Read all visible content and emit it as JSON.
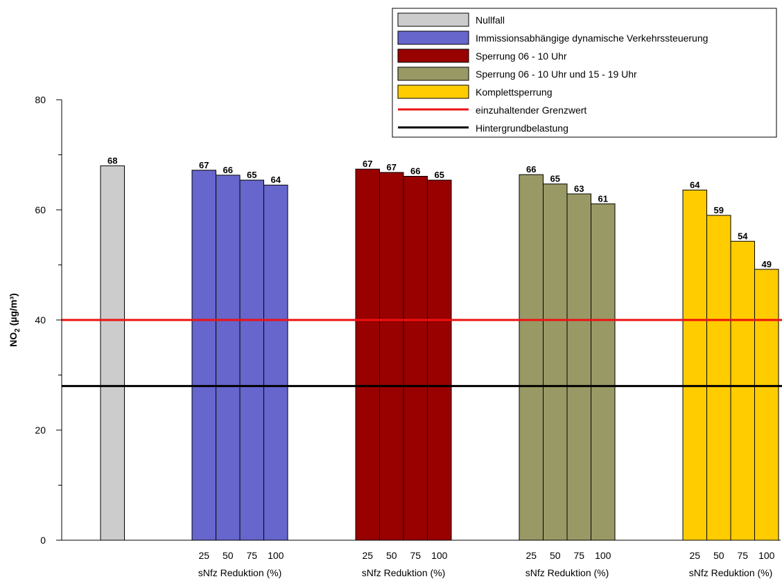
{
  "chart_data": {
    "type": "bar",
    "ylabel_main": "NO",
    "ylabel_sub": "2",
    "ylabel_rest": " (µg/m³)",
    "ylim": [
      0,
      80
    ],
    "yticks": [
      0,
      20,
      40,
      60,
      80
    ],
    "ytick_labels": [
      "0",
      "20",
      "40",
      "60",
      "80"
    ],
    "ytick_minor": [
      10,
      30,
      50,
      70
    ],
    "xlabel": "sNfz Reduktion (%)",
    "sub_categories": [
      "25",
      "50",
      "75",
      "100"
    ],
    "groups": [
      {
        "name": "Nullfall",
        "color": "#cccccc",
        "values": [
          68
        ],
        "labels": [
          "68"
        ],
        "has_axis_labels": false
      },
      {
        "name": "Immissionsabhängige dynamische Verkehrssteuerung",
        "color": "#6666cc",
        "values": [
          67.2,
          66.3,
          65.4,
          64.5
        ],
        "labels": [
          "67",
          "66",
          "65",
          "64"
        ],
        "has_axis_labels": true
      },
      {
        "name": "Sperrung 06 - 10 Uhr",
        "color": "#990000",
        "values": [
          67.4,
          66.8,
          66.1,
          65.4
        ],
        "labels": [
          "67",
          "67",
          "66",
          "65"
        ],
        "has_axis_labels": true
      },
      {
        "name": "Sperrung 06 - 10 Uhr und 15 - 19 Uhr",
        "color": "#999966",
        "values": [
          66.4,
          64.7,
          62.9,
          61.1
        ],
        "labels": [
          "66",
          "65",
          "63",
          "61"
        ],
        "has_axis_labels": true
      },
      {
        "name": "Komplettsperrung",
        "color": "#ffcc00",
        "values": [
          63.6,
          59.0,
          54.3,
          49.2
        ],
        "labels": [
          "64",
          "59",
          "54",
          "49"
        ],
        "has_axis_labels": true
      }
    ],
    "reference_lines": [
      {
        "name": "einzuhaltender Grenzwert",
        "value": 40,
        "color": "#ee1111"
      },
      {
        "name": "Hintergrundbelastung",
        "value": 28,
        "color": "#000000"
      }
    ],
    "legend_position": "top-right",
    "grid": false
  }
}
